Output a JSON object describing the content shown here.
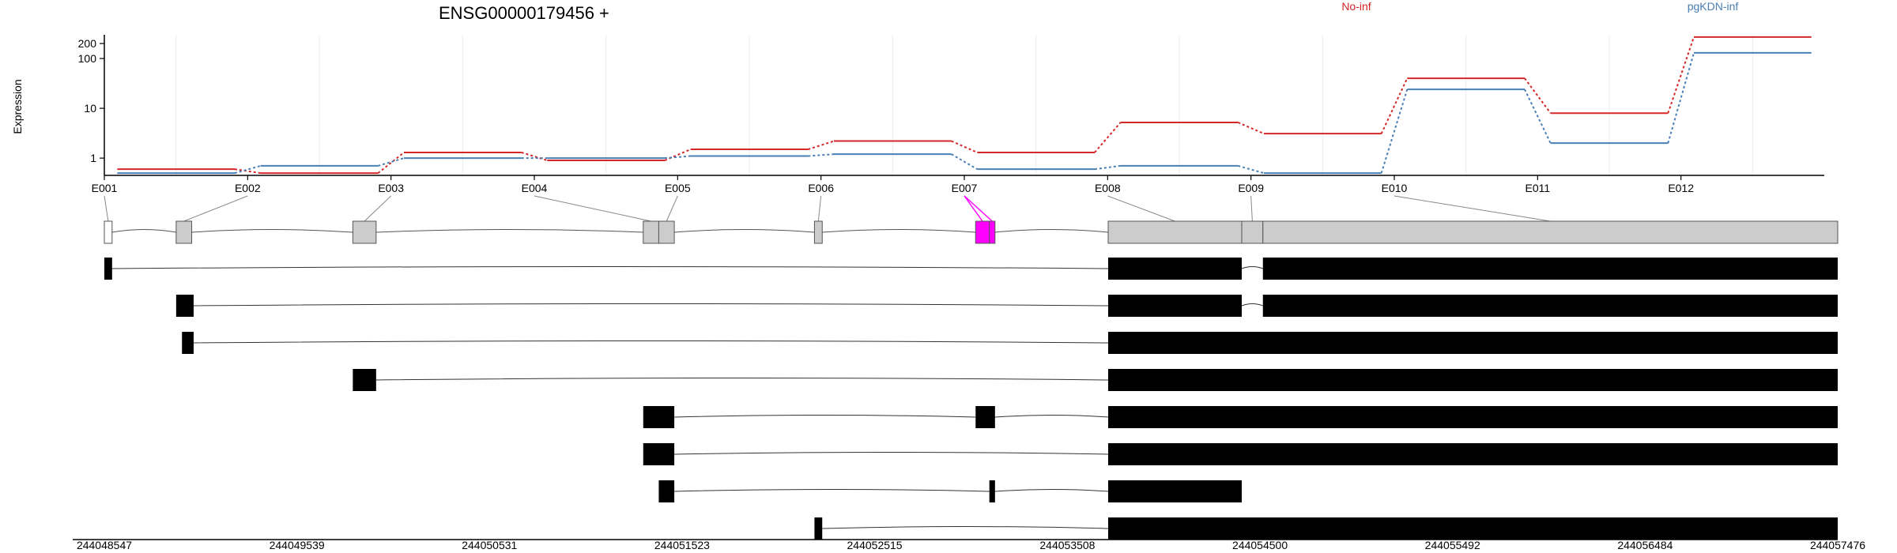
{
  "chart_data": {
    "type": "line",
    "title": "ENSG00000179456 +",
    "ylabel": "Expression",
    "y_scale": "log",
    "yticks": [
      1,
      10,
      100,
      200
    ],
    "grid": true,
    "legend_placement": "top",
    "exons": [
      "E001",
      "E002",
      "E003",
      "E004",
      "E005",
      "E006",
      "E007",
      "E008",
      "E009",
      "E010",
      "E011",
      "E012"
    ],
    "series": [
      {
        "name": "No-inf",
        "color": "#d62728",
        "values": [
          0.6,
          0.5,
          1.3,
          0.9,
          1.5,
          2.2,
          1.3,
          5.2,
          3.1,
          40,
          8,
          270
        ]
      },
      {
        "name": "pgKDN-inf",
        "color": "#4a7fb5",
        "values": [
          0.5,
          0.7,
          1.0,
          1.0,
          1.1,
          1.2,
          0.6,
          0.7,
          0.5,
          24,
          2,
          130
        ]
      }
    ],
    "highlight_exon": "E007",
    "highlight_color": "#ff00ff",
    "genomic_ticks": [
      "244048547",
      "244049539",
      "244050531",
      "244051523",
      "244052515",
      "244053508",
      "244054500",
      "244055492",
      "244056484",
      "244057476"
    ],
    "genomic_range": [
      244048547,
      244057476
    ],
    "exon_bins": [
      [
        244048547,
        244048587
      ],
      [
        244048917,
        244048997
      ],
      [
        244049827,
        244049947
      ],
      [
        244051323,
        244051403
      ],
      [
        244051403,
        244051483
      ],
      [
        244052205,
        244052245
      ],
      [
        244053035,
        244053106
      ],
      [
        244053106,
        244053135
      ],
      [
        244053718,
        244054406
      ],
      [
        244054406,
        244054515
      ],
      [
        244054515,
        244057476
      ]
    ],
    "bin_exon_index": [
      0,
      1,
      2,
      3,
      4,
      5,
      6,
      6,
      7,
      8,
      9
    ],
    "transcripts": [
      [
        [
          244048547,
          244048587
        ],
        [
          244053718,
          244054406
        ],
        [
          244054515,
          244057476
        ]
      ],
      [
        [
          244048917,
          244049007
        ],
        [
          244053718,
          244054406
        ],
        [
          244054515,
          244057476
        ]
      ],
      [
        [
          244048947,
          244049007
        ],
        [
          244053718,
          244057476
        ]
      ],
      [
        [
          244049827,
          244049947
        ],
        [
          244053718,
          244057476
        ]
      ],
      [
        [
          244051323,
          244051483
        ],
        [
          244053035,
          244053135
        ],
        [
          244053718,
          244057476
        ]
      ],
      [
        [
          244051323,
          244051483
        ],
        [
          244053718,
          244057476
        ]
      ],
      [
        [
          244051403,
          244051483
        ],
        [
          244053106,
          244053135
        ],
        [
          244053718,
          244054406
        ]
      ],
      [
        [
          244052205,
          244052245
        ],
        [
          244053718,
          244057476
        ]
      ]
    ]
  }
}
